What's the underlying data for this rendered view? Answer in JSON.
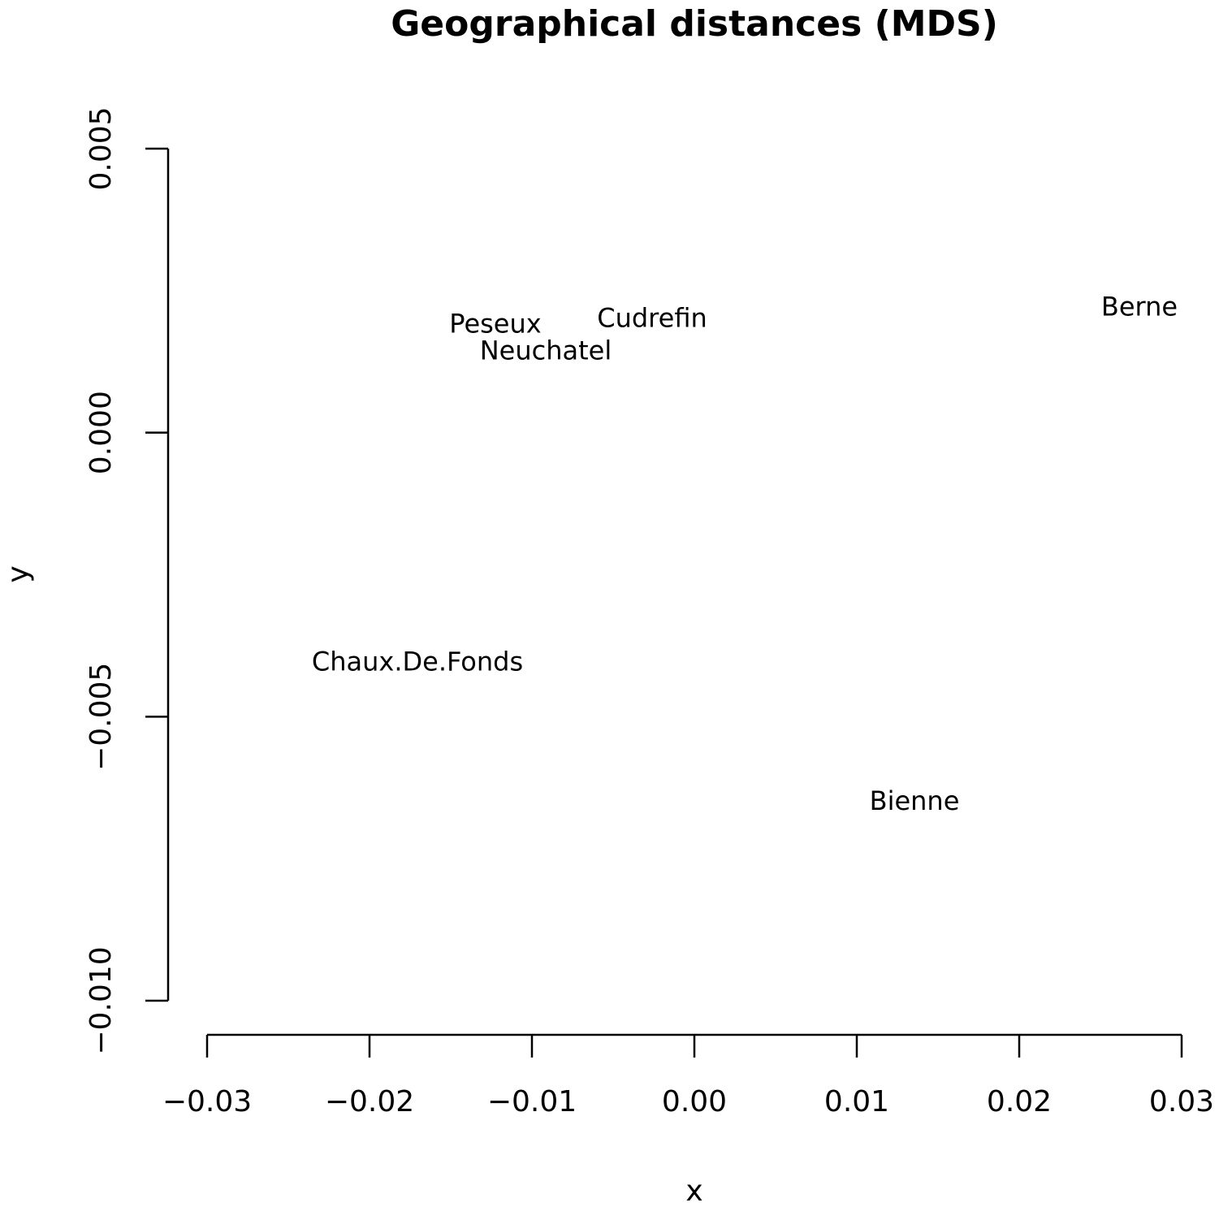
{
  "chart_data": {
    "type": "scatter",
    "title": "Geographical distances (MDS)",
    "x_label": "x",
    "y_label": "y",
    "labels": [
      "Berne",
      "Cudrefin",
      "Peseux",
      "Neuchatel",
      "Chaux.De.Fonds",
      "Bienne"
    ],
    "x": [
      0.0274,
      -0.0026,
      -0.01225,
      -0.00915,
      -0.01705,
      0.01355
    ],
    "values": [
      0.00219,
      0.00199,
      0.00189,
      0.00142,
      -0.00406,
      -0.00651
    ],
    "xlim": [
      -0.03,
      0.03
    ],
    "xticks": [
      {
        "value": -0.03,
        "label": "−0.03"
      },
      {
        "value": -0.02,
        "label": "−0.02"
      },
      {
        "value": -0.01,
        "label": "−0.01"
      },
      {
        "value": 0,
        "label": "0.00"
      },
      0.01,
      0.02,
      0.03
    ],
    "ylim": [
      -0.01,
      0.005
    ],
    "yticks": [
      {
        "value": -0.01,
        "label": "−0.010"
      },
      {
        "value": -0.005,
        "label": "−0.005"
      },
      {
        "value": 0,
        "label": "0.000"
      },
      0.005
    ],
    "grid": false,
    "color": "#000000"
  }
}
